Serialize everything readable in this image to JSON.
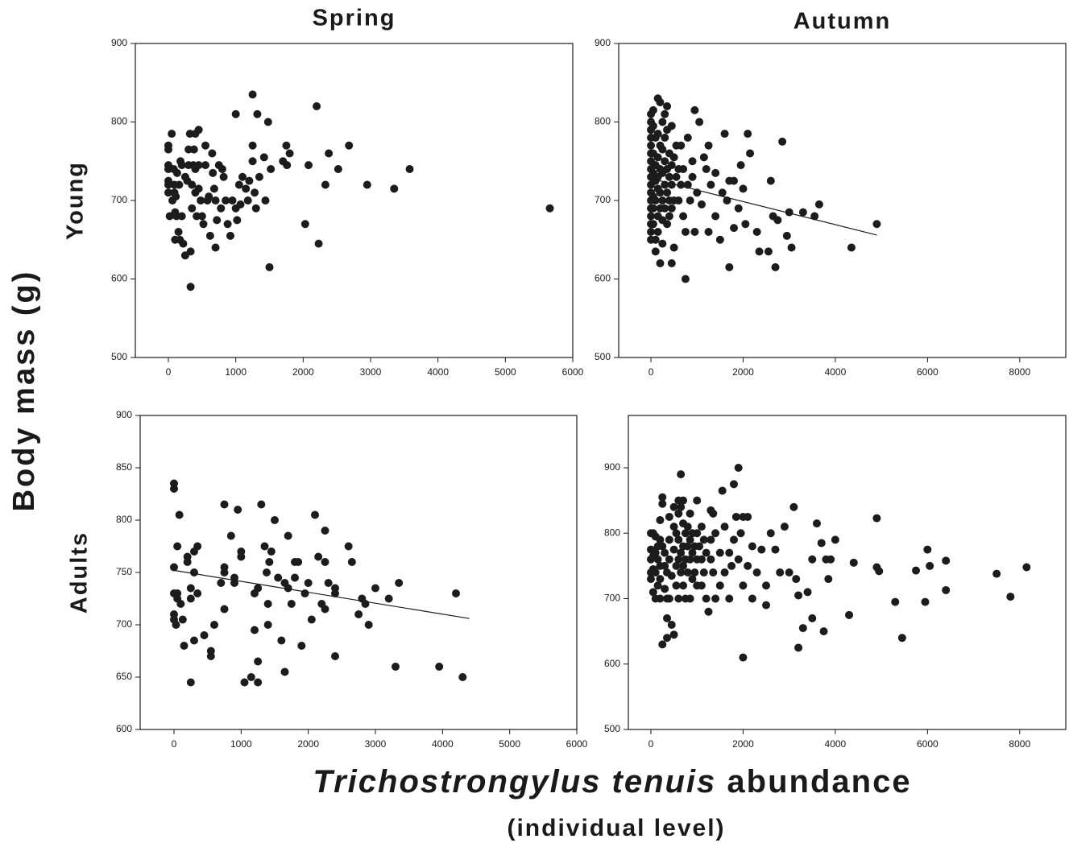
{
  "labels": {
    "y_label": "Body mass (g)",
    "x_label_italic": "Trichostrongylus tenuis",
    "x_label_rest": "abundance",
    "x_sublabel": "(individual level)"
  },
  "chart_data": [
    {
      "type": "scatter",
      "title": "Spring",
      "row_label": "Young",
      "color": "#1c1c1c",
      "xlim": [
        -490,
        6000
      ],
      "xticks": [
        0,
        1000,
        2000,
        3000,
        4000,
        5000,
        6000
      ],
      "ylim": [
        500,
        900
      ],
      "yticks": [
        500,
        600,
        700,
        800,
        900
      ],
      "x": [
        0,
        0,
        0,
        0,
        0,
        0,
        0,
        20,
        50,
        60,
        80,
        90,
        90,
        100,
        100,
        110,
        120,
        130,
        150,
        160,
        170,
        180,
        200,
        200,
        220,
        250,
        250,
        280,
        300,
        300,
        320,
        330,
        330,
        350,
        350,
        370,
        380,
        400,
        400,
        400,
        420,
        450,
        450,
        450,
        480,
        500,
        520,
        550,
        550,
        580,
        600,
        620,
        650,
        660,
        680,
        700,
        700,
        720,
        750,
        780,
        800,
        820,
        850,
        880,
        920,
        950,
        1000,
        1000,
        1020,
        1050,
        1070,
        1100,
        1150,
        1180,
        1200,
        1250,
        1250,
        1250,
        1280,
        1300,
        1320,
        1350,
        1420,
        1440,
        1480,
        1500,
        1520,
        1700,
        1750,
        1760,
        1800,
        2030,
        2080,
        2200,
        2230,
        2330,
        2380,
        2520,
        2680,
        2950,
        3350,
        3580,
        5660
      ],
      "values": [
        770,
        765,
        745,
        740,
        725,
        720,
        710,
        680,
        785,
        700,
        740,
        720,
        710,
        685,
        650,
        705,
        680,
        735,
        660,
        720,
        650,
        750,
        745,
        680,
        645,
        730,
        630,
        725,
        765,
        745,
        785,
        635,
        590,
        720,
        690,
        745,
        765,
        785,
        740,
        710,
        680,
        790,
        745,
        715,
        700,
        680,
        670,
        770,
        745,
        700,
        705,
        655,
        760,
        735,
        715,
        700,
        640,
        675,
        745,
        690,
        740,
        730,
        700,
        670,
        655,
        700,
        810,
        690,
        675,
        720,
        695,
        730,
        715,
        700,
        725,
        835,
        770,
        750,
        710,
        690,
        810,
        730,
        755,
        700,
        800,
        615,
        740,
        750,
        770,
        745,
        760,
        670,
        745,
        820,
        645,
        720,
        760,
        740,
        770,
        720,
        715,
        740,
        690
      ]
    },
    {
      "type": "scatter",
      "title": "Autumn",
      "color": "#1c1c1c",
      "xlim": [
        -700,
        9000
      ],
      "xticks": [
        0,
        2000,
        4000,
        6000,
        8000
      ],
      "ylim": [
        500,
        900
      ],
      "yticks": [
        500,
        600,
        700,
        800,
        900
      ],
      "x": [
        0,
        0,
        0,
        0,
        0,
        0,
        0,
        0,
        0,
        0,
        0,
        0,
        0,
        0,
        0,
        0,
        0,
        50,
        50,
        50,
        50,
        50,
        50,
        50,
        100,
        100,
        100,
        100,
        100,
        100,
        150,
        150,
        150,
        150,
        150,
        150,
        150,
        200,
        200,
        200,
        200,
        200,
        200,
        250,
        250,
        250,
        250,
        250,
        250,
        300,
        300,
        300,
        300,
        300,
        350,
        350,
        350,
        350,
        350,
        400,
        400,
        400,
        400,
        450,
        450,
        450,
        450,
        450,
        500,
        500,
        500,
        550,
        550,
        600,
        600,
        650,
        650,
        700,
        700,
        750,
        750,
        800,
        800,
        850,
        900,
        900,
        950,
        950,
        1000,
        1050,
        1100,
        1150,
        1200,
        1250,
        1250,
        1300,
        1400,
        1400,
        1500,
        1550,
        1600,
        1650,
        1700,
        1700,
        1800,
        1800,
        1900,
        1950,
        2000,
        2050,
        2100,
        2150,
        2300,
        2350,
        2550,
        2600,
        2650,
        2700,
        2750,
        2850,
        2950,
        3000,
        3050,
        3300,
        3550,
        3650,
        4350,
        4900
      ],
      "values": [
        810,
        800,
        790,
        780,
        770,
        760,
        750,
        740,
        730,
        720,
        710,
        700,
        690,
        680,
        670,
        660,
        650,
        815,
        795,
        760,
        735,
        705,
        690,
        670,
        780,
        745,
        725,
        700,
        650,
        635,
        830,
        785,
        755,
        730,
        715,
        680,
        660,
        825,
        770,
        740,
        710,
        690,
        620,
        800,
        765,
        735,
        700,
        675,
        645,
        810,
        780,
        750,
        720,
        690,
        820,
        790,
        740,
        710,
        670,
        760,
        730,
        700,
        680,
        795,
        745,
        720,
        690,
        620,
        755,
        700,
        640,
        770,
        730,
        740,
        700,
        770,
        720,
        740,
        680,
        660,
        600,
        780,
        720,
        700,
        750,
        730,
        815,
        660,
        710,
        800,
        695,
        755,
        740,
        770,
        660,
        720,
        735,
        680,
        650,
        710,
        785,
        700,
        725,
        615,
        725,
        665,
        690,
        745,
        715,
        670,
        785,
        760,
        660,
        635,
        635,
        725,
        680,
        615,
        675,
        775,
        655,
        685,
        640,
        685,
        680,
        695,
        640,
        670
      ],
      "trendline": {
        "x": [
          0,
          4900
        ],
        "values": [
          728,
          656
        ]
      }
    },
    {
      "type": "scatter",
      "row_label": "Adults",
      "color": "#1c1c1c",
      "xlim": [
        -504,
        6000
      ],
      "xticks": [
        0,
        1000,
        2000,
        3000,
        4000,
        5000,
        6000
      ],
      "ylim": [
        600,
        900
      ],
      "yticks": [
        600,
        650,
        700,
        750,
        800,
        850,
        900
      ],
      "x": [
        0,
        0,
        0,
        0,
        0,
        0,
        30,
        50,
        50,
        50,
        80,
        100,
        130,
        150,
        200,
        200,
        250,
        250,
        250,
        300,
        300,
        300,
        350,
        350,
        450,
        550,
        550,
        600,
        700,
        750,
        750,
        750,
        750,
        850,
        900,
        900,
        950,
        1000,
        1000,
        1050,
        1150,
        1200,
        1200,
        1250,
        1250,
        1250,
        1300,
        1350,
        1380,
        1400,
        1400,
        1420,
        1450,
        1500,
        1550,
        1600,
        1650,
        1650,
        1700,
        1700,
        1750,
        1800,
        1800,
        1850,
        1900,
        1950,
        2000,
        2050,
        2100,
        2150,
        2200,
        2250,
        2250,
        2250,
        2300,
        2400,
        2400,
        2400,
        2600,
        2650,
        2750,
        2800,
        2850,
        2900,
        3000,
        3200,
        3300,
        3350,
        3950,
        4200,
        4300
      ],
      "values": [
        835,
        830,
        755,
        730,
        710,
        705,
        700,
        730,
        725,
        775,
        805,
        720,
        705,
        680,
        760,
        765,
        735,
        725,
        645,
        770,
        750,
        685,
        775,
        730,
        690,
        675,
        670,
        700,
        740,
        815,
        755,
        750,
        715,
        785,
        745,
        740,
        810,
        770,
        765,
        645,
        650,
        730,
        695,
        735,
        665,
        645,
        815,
        775,
        750,
        720,
        700,
        760,
        770,
        800,
        745,
        685,
        740,
        655,
        785,
        735,
        720,
        760,
        745,
        760,
        680,
        730,
        740,
        705,
        805,
        765,
        720,
        790,
        760,
        715,
        740,
        735,
        730,
        670,
        775,
        760,
        710,
        725,
        720,
        700,
        735,
        725,
        660,
        740,
        660,
        730,
        650
      ],
      "trendline": {
        "x": [
          0,
          4400
        ],
        "values": [
          752,
          706
        ]
      }
    },
    {
      "type": "scatter",
      "color": "#1c1c1c",
      "xlim": [
        -489,
        9000
      ],
      "xticks": [
        0,
        2000,
        4000,
        6000,
        8000
      ],
      "ylim": [
        500,
        980
      ],
      "yticks": [
        500,
        600,
        700,
        800,
        900
      ],
      "x": [
        0,
        0,
        0,
        0,
        0,
        50,
        50,
        50,
        50,
        100,
        100,
        100,
        100,
        150,
        150,
        150,
        200,
        200,
        200,
        200,
        200,
        250,
        250,
        250,
        250,
        300,
        300,
        300,
        350,
        350,
        350,
        350,
        400,
        400,
        400,
        400,
        450,
        450,
        500,
        500,
        500,
        500,
        550,
        550,
        550,
        600,
        600,
        600,
        600,
        600,
        650,
        650,
        650,
        650,
        700,
        700,
        700,
        700,
        700,
        750,
        750,
        750,
        800,
        800,
        800,
        850,
        850,
        850,
        850,
        900,
        900,
        900,
        950,
        950,
        1000,
        1000,
        1000,
        1000,
        1050,
        1100,
        1100,
        1100,
        1150,
        1150,
        1200,
        1200,
        1250,
        1300,
        1300,
        1300,
        1350,
        1350,
        1400,
        1400,
        1500,
        1500,
        1550,
        1600,
        1600,
        1700,
        1700,
        1750,
        1800,
        1800,
        1850,
        1900,
        1900,
        1950,
        2000,
        2000,
        2000,
        2100,
        2100,
        2200,
        2200,
        2300,
        2400,
        2500,
        2500,
        2600,
        2700,
        2800,
        2900,
        3000,
        3100,
        3150,
        3200,
        3200,
        3300,
        3400,
        3500,
        3500,
        3600,
        3700,
        3750,
        3800,
        3850,
        3900,
        4000,
        4300,
        4400,
        4900,
        4900,
        4950,
        5300,
        5450,
        5750,
        5950,
        6000,
        6050,
        6400,
        6400,
        7500,
        7800,
        8150
      ],
      "values": [
        800,
        775,
        760,
        740,
        730,
        800,
        765,
        745,
        710,
        795,
        770,
        740,
        700,
        780,
        760,
        720,
        820,
        790,
        750,
        730,
        700,
        855,
        845,
        780,
        630,
        770,
        750,
        715,
        740,
        700,
        670,
        640,
        825,
        790,
        760,
        700,
        735,
        660,
        840,
        810,
        775,
        645,
        800,
        750,
        720,
        850,
        830,
        790,
        760,
        700,
        890,
        840,
        770,
        740,
        850,
        815,
        780,
        750,
        720,
        800,
        760,
        700,
        810,
        780,
        740,
        830,
        790,
        760,
        700,
        800,
        770,
        730,
        780,
        740,
        850,
        800,
        760,
        720,
        780,
        810,
        760,
        720,
        790,
        740,
        770,
        700,
        680,
        835,
        790,
        760,
        830,
        740,
        800,
        700,
        770,
        720,
        865,
        810,
        740,
        770,
        700,
        750,
        875,
        790,
        825,
        900,
        760,
        800,
        825,
        720,
        610,
        825,
        750,
        780,
        700,
        740,
        775,
        720,
        690,
        800,
        775,
        740,
        810,
        740,
        840,
        730,
        705,
        625,
        655,
        710,
        670,
        760,
        815,
        785,
        650,
        760,
        730,
        760,
        790,
        675,
        755,
        823,
        748,
        742,
        695,
        640,
        743,
        695,
        775,
        750,
        758,
        713,
        738,
        703,
        748
      ],
      "trendline": null
    }
  ]
}
